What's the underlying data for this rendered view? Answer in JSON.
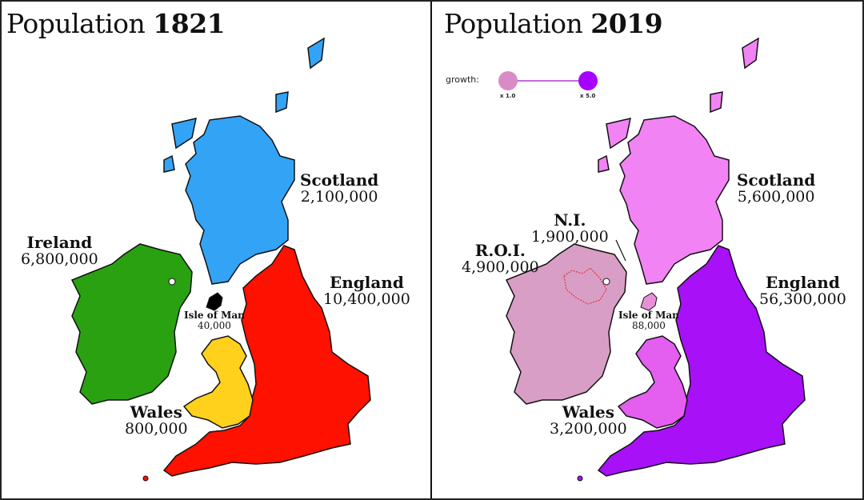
{
  "left": {
    "title_prefix": "Population",
    "title_year": "1821",
    "regions": {
      "scotland": {
        "name": "Scotland",
        "value": "2,100,000",
        "color": "#33a4f5"
      },
      "england": {
        "name": "England",
        "value": "10,400,000",
        "color": "#ff1100"
      },
      "ireland": {
        "name": "Ireland",
        "value": "6,800,000",
        "color": "#2aa111"
      },
      "wales": {
        "name": "Wales",
        "value": "800,000",
        "color": "#ffd11c"
      },
      "isle_of_man": {
        "name": "Isle of Man",
        "value": "40,000",
        "color": "#000000"
      }
    }
  },
  "right": {
    "title_prefix": "Population",
    "title_year": "2019",
    "legend": {
      "label": "growth:",
      "min_label": "x 1.0",
      "max_label": "x 5.0",
      "min_color": "#d98bc8",
      "max_color": "#a800ff"
    },
    "regions": {
      "scotland": {
        "name": "Scotland",
        "value": "5,600,000",
        "color": "#f283f5"
      },
      "england": {
        "name": "England",
        "value": "56,300,000",
        "color": "#a810f8"
      },
      "roi": {
        "name": "R.O.I.",
        "value": "4,900,000",
        "color": "#d99ec5"
      },
      "ni": {
        "name": "N.I.",
        "value": "1,900,000",
        "color": "#d99ec5"
      },
      "wales": {
        "name": "Wales",
        "value": "3,200,000",
        "color": "#e45ef0"
      },
      "isle_of_man": {
        "name": "Isle of Man",
        "value": "88,000",
        "color": "#e98fd9"
      }
    }
  }
}
